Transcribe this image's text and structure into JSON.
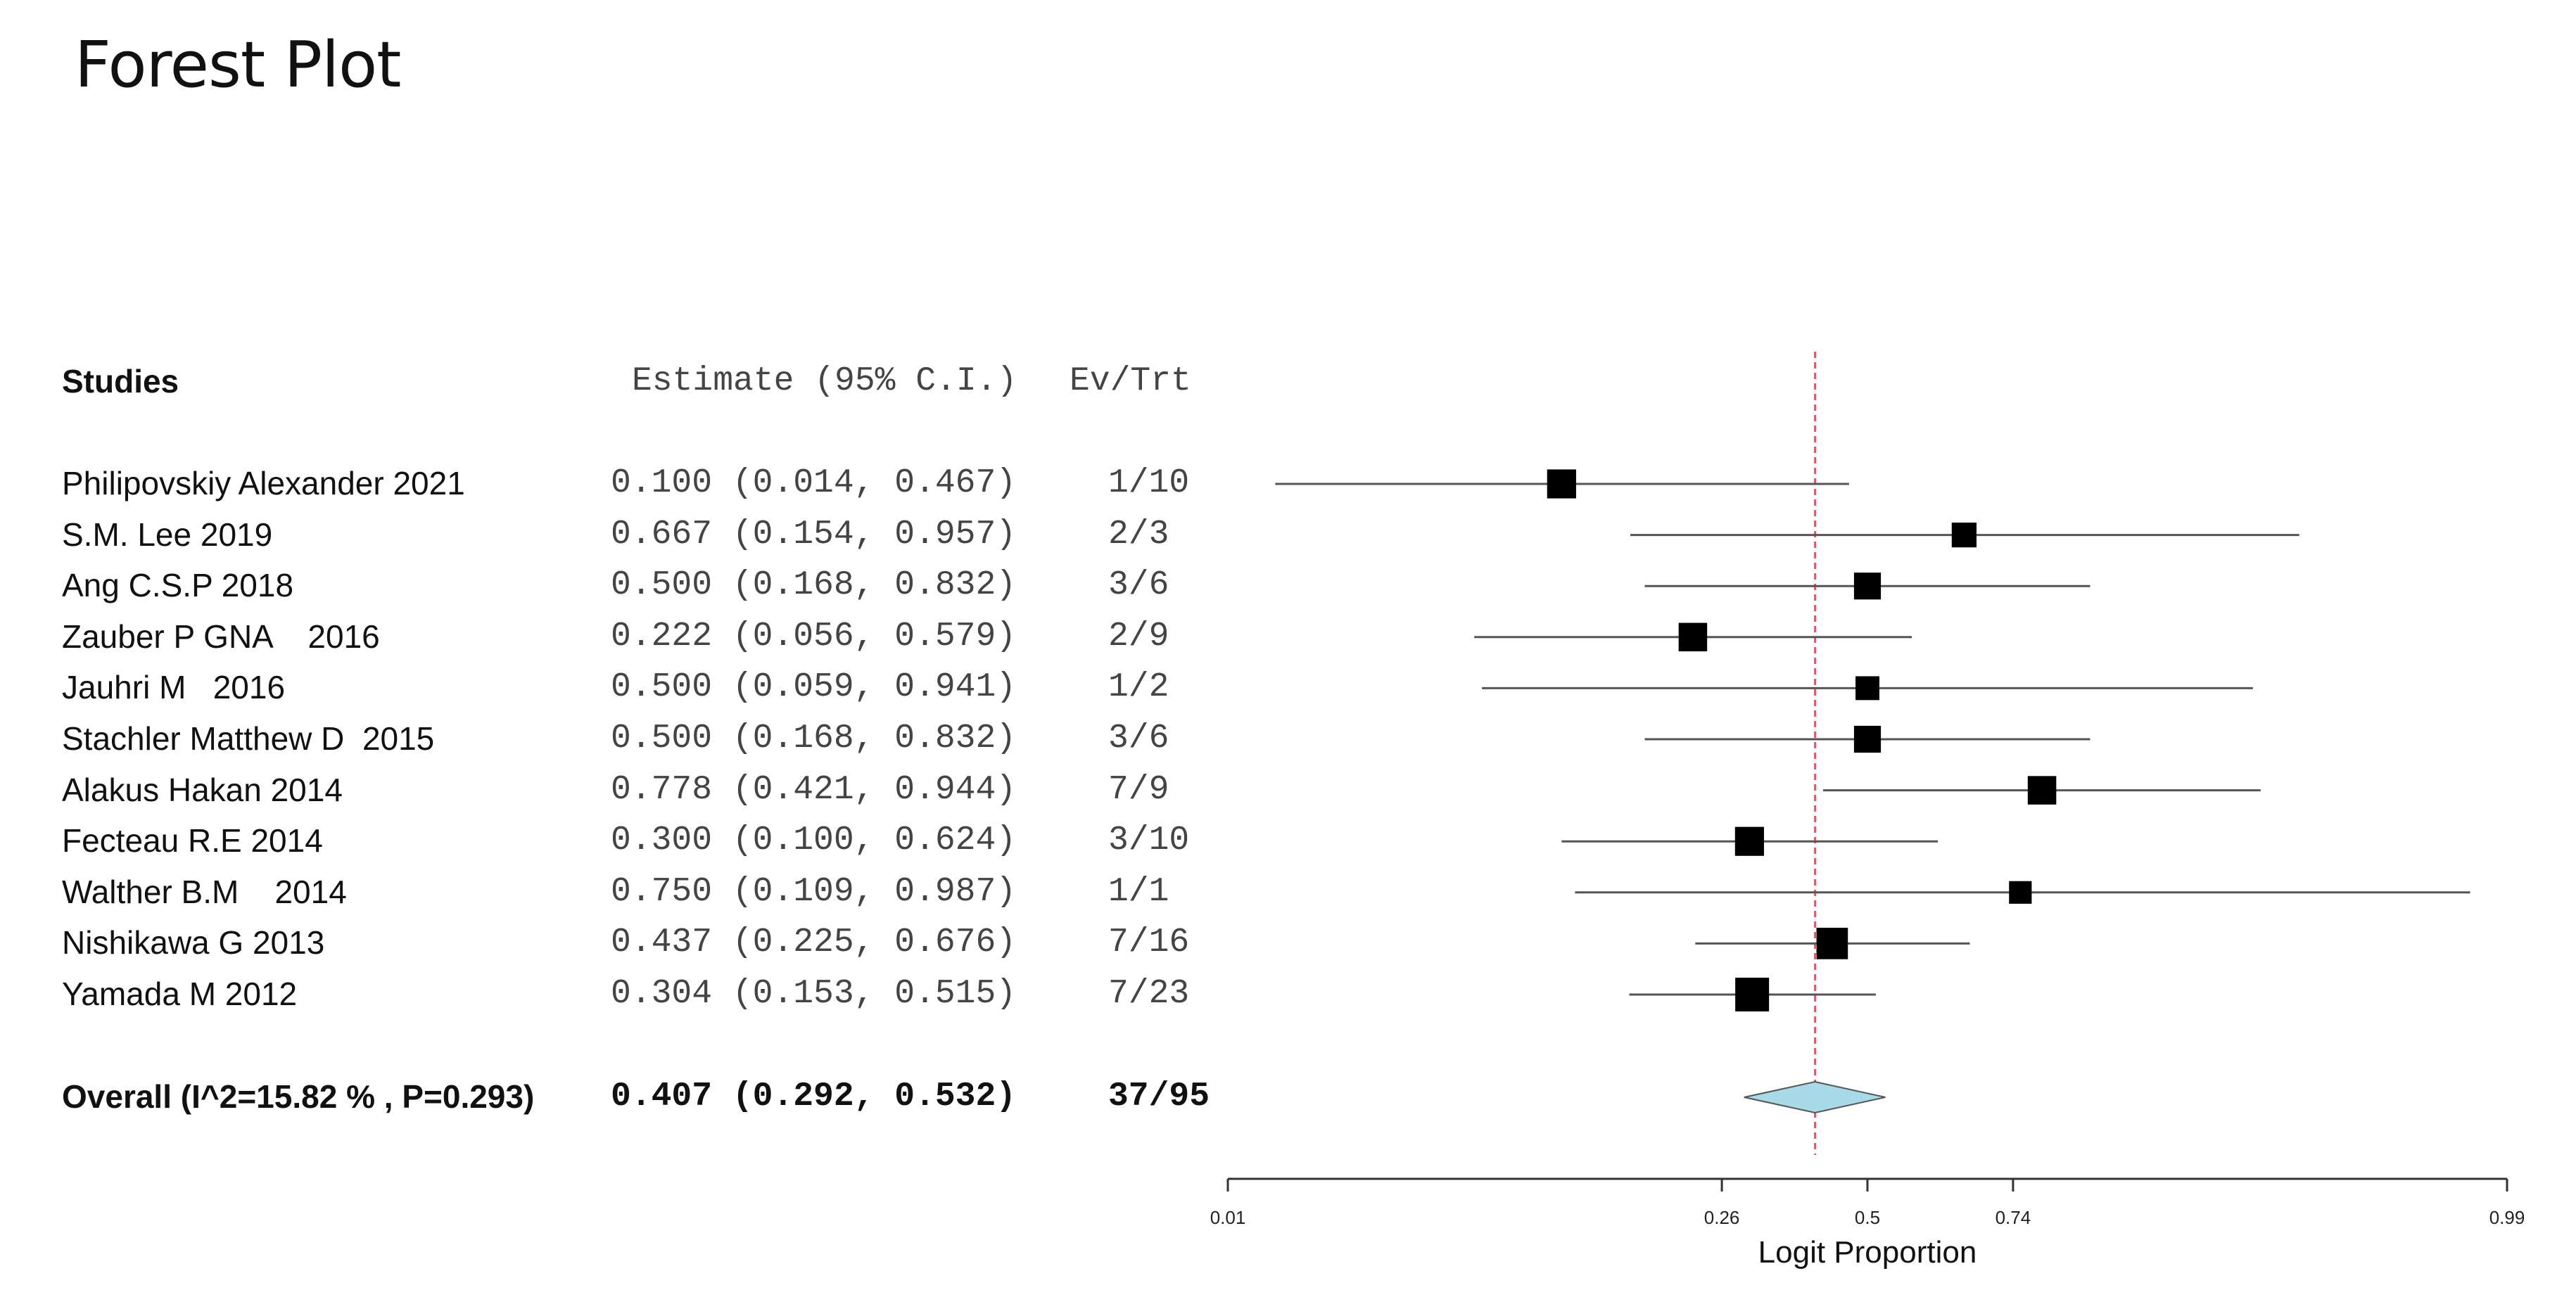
{
  "chart_data": {
    "type": "forest",
    "title": "Forest Plot",
    "columns": {
      "studies": "Studies",
      "estimate": "Estimate (95% C.I.)",
      "ev_trt": "Ev/Trt"
    },
    "studies": [
      {
        "name": "Philipovskiy Alexander 2021",
        "estimate_text": "0.100 (0.014, 0.467)",
        "ev_trt": "1/10",
        "est": 0.1,
        "lo": 0.014,
        "hi": 0.467,
        "weight": 10
      },
      {
        "name": "S.M. Lee 2019",
        "estimate_text": "0.667 (0.154, 0.957)",
        "ev_trt": "2/3",
        "est": 0.667,
        "lo": 0.154,
        "hi": 0.957,
        "weight": 3
      },
      {
        "name": "Ang C.S.P 2018",
        "estimate_text": "0.500 (0.168, 0.832)",
        "ev_trt": "3/6",
        "est": 0.5,
        "lo": 0.168,
        "hi": 0.832,
        "weight": 6
      },
      {
        "name": "Zauber P GNA    2016",
        "estimate_text": "0.222 (0.056, 0.579)",
        "ev_trt": "2/9",
        "est": 0.222,
        "lo": 0.056,
        "hi": 0.579,
        "weight": 9
      },
      {
        "name": "Jauhri M   2016",
        "estimate_text": "0.500 (0.059, 0.941)",
        "ev_trt": "1/2",
        "est": 0.5,
        "lo": 0.059,
        "hi": 0.941,
        "weight": 2
      },
      {
        "name": "Stachler Matthew D  2015",
        "estimate_text": "0.500 (0.168, 0.832)",
        "ev_trt": "3/6",
        "est": 0.5,
        "lo": 0.168,
        "hi": 0.832,
        "weight": 6
      },
      {
        "name": "Alakus Hakan 2014",
        "estimate_text": "0.778 (0.421, 0.944)",
        "ev_trt": "7/9",
        "est": 0.778,
        "lo": 0.421,
        "hi": 0.944,
        "weight": 9
      },
      {
        "name": "Fecteau R.E 2014",
        "estimate_text": "0.300 (0.100, 0.624)",
        "ev_trt": "3/10",
        "est": 0.3,
        "lo": 0.1,
        "hi": 0.624,
        "weight": 10
      },
      {
        "name": "Walther B.M    2014",
        "estimate_text": "0.750 (0.109, 0.987)",
        "ev_trt": "1/1",
        "est": 0.75,
        "lo": 0.109,
        "hi": 0.987,
        "weight": 1
      },
      {
        "name": "Nishikawa G 2013",
        "estimate_text": "0.437 (0.225, 0.676)",
        "ev_trt": "7/16",
        "est": 0.437,
        "lo": 0.225,
        "hi": 0.676,
        "weight": 16
      },
      {
        "name": "Yamada M 2012",
        "estimate_text": "0.304 (0.153, 0.515)",
        "ev_trt": "7/23",
        "est": 0.304,
        "lo": 0.153,
        "hi": 0.515,
        "weight": 23
      }
    ],
    "overall": {
      "name": "Overall (I^2=15.82 % , P=0.293)",
      "estimate_text": "0.407 (0.292, 0.532)",
      "ev_trt": "37/95",
      "est": 0.407,
      "lo": 0.292,
      "hi": 0.532
    },
    "xlabel": "Logit Proportion",
    "xticks": [
      0.01,
      0.26,
      0.5,
      0.74,
      0.99
    ],
    "xtick_labels": [
      "0.01",
      "0.26",
      "0.5",
      "0.74",
      "0.99"
    ],
    "xscale": "logit",
    "reference_line": 0.407,
    "colors": {
      "marker": "#000000",
      "ci_line": "#555555",
      "diamond_fill": "#a8dbe8",
      "diamond_stroke": "#555555",
      "reference_line": "#e0404a"
    }
  }
}
